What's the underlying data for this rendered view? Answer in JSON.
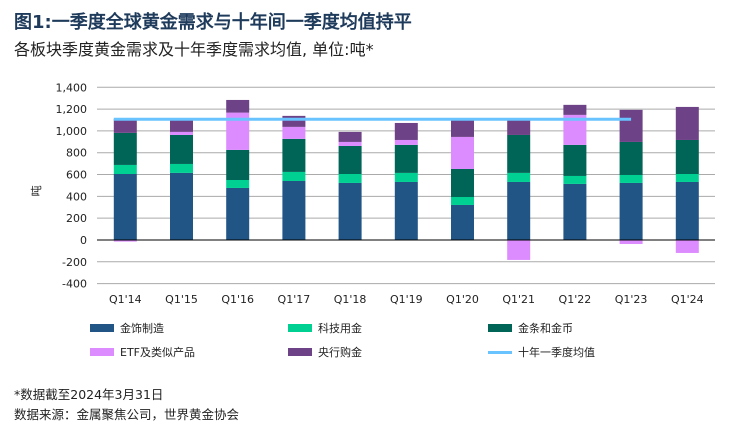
{
  "title": "图1:一季度全球黄金需求与十年间一季度均值持平",
  "subtitle": "各板块季度黄金需求及十年季度需求均值, 单位:吨*",
  "chart_data": {
    "type": "bar",
    "stacked": true,
    "ylabel": "吨",
    "ylim": [
      -400,
      1400
    ],
    "yticks": [
      -400,
      -200,
      0,
      200,
      400,
      600,
      800,
      1000,
      1200,
      1400
    ],
    "ytick_labels": [
      "-400",
      "-200",
      "0",
      "200",
      "400",
      "600",
      "800",
      "1,000",
      "1,200",
      "1,400"
    ],
    "categories": [
      "Q1'14",
      "Q1'15",
      "Q1'16",
      "Q1'17",
      "Q1'18",
      "Q1'19",
      "Q1'20",
      "Q1'21",
      "Q1'22",
      "Q1'23",
      "Q1'24"
    ],
    "series": [
      {
        "name": "金饰制造",
        "color": "#215585",
        "values": [
          605,
          615,
          477,
          541,
          523,
          532,
          321,
          532,
          514,
          523,
          532
        ]
      },
      {
        "name": "科技用金",
        "color": "#00d092",
        "values": [
          83,
          82,
          73,
          83,
          82,
          83,
          73,
          83,
          73,
          73,
          73
        ]
      },
      {
        "name": "金条和金币",
        "color": "#006557",
        "values": [
          294,
          266,
          276,
          303,
          257,
          257,
          257,
          348,
          285,
          303,
          312
        ]
      },
      {
        "name": "ETF及类似产品",
        "color": "#dc8cff",
        "values": [
          -15,
          28,
          342,
          110,
          37,
          45,
          294,
          -183,
          275,
          -37,
          -119
        ]
      },
      {
        "name": "央行购金",
        "color": "#6e4287",
        "values": [
          128,
          114,
          116,
          101,
          92,
          156,
          155,
          137,
          92,
          294,
          303
        ]
      }
    ],
    "average_line": {
      "name": "十年一季度均值",
      "color": "#69c3ff",
      "value": 1107,
      "from": "Q1'14",
      "to": "Q1'23"
    }
  },
  "notes": [
    "*数据截至2024年3月31日",
    "数据来源：金属聚焦公司，世界黄金协会"
  ]
}
